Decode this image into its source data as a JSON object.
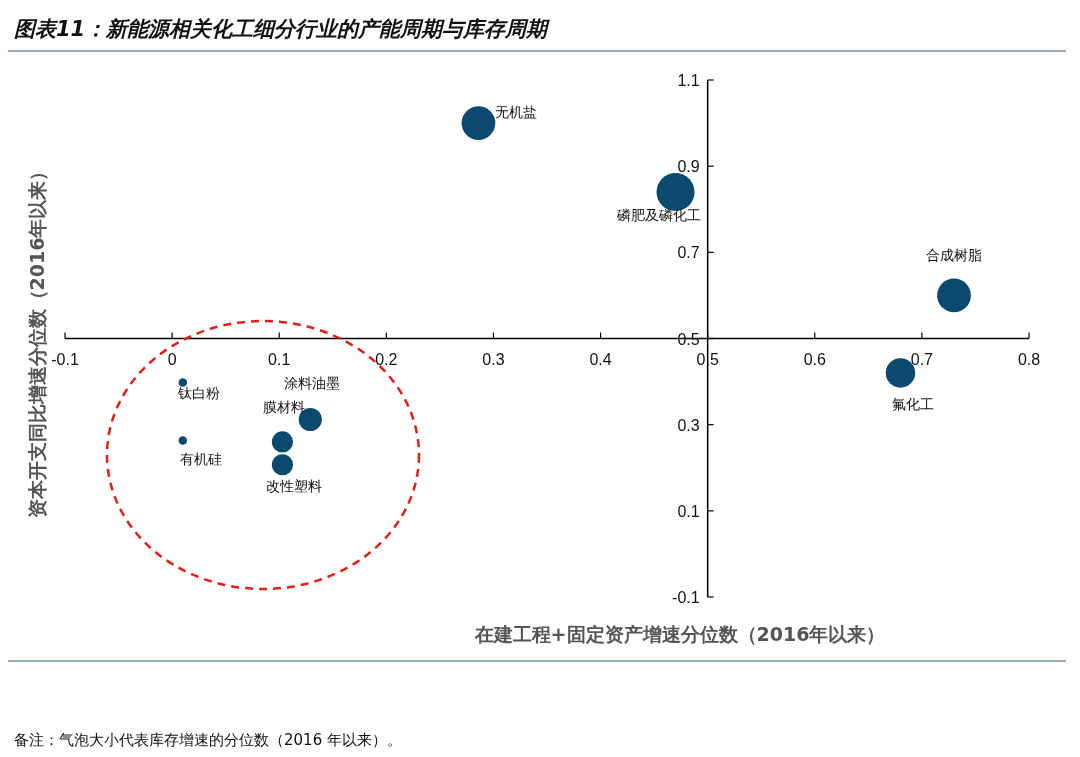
{
  "chart_data": {
    "type": "bubble",
    "title": "图表11：新能源相关化工细分行业的产能周期与库存周期",
    "xlabel": "在建工程+固定资产增速分位数（2016年以来）",
    "ylabel": "资本开支同比增速分位数（2016年以来）",
    "series": [
      {
        "color": "#0b4a6f",
        "x": [
          0.286,
          0.47,
          0.73,
          0.68,
          0.129,
          0.103,
          0.103,
          0.01,
          0.01
        ],
        "values": [
          1.0,
          0.84,
          0.6,
          0.42,
          0.312,
          0.26,
          0.207,
          0.398,
          0.263
        ],
        "sizes": [
          0.79,
          1,
          0.79,
          0.6,
          0.37,
          0.31,
          0.31,
          0.05,
          0.05
        ]
      }
    ],
    "xlim": [
      -0.1,
      0.8
    ],
    "ylim": [
      -0.1,
      1.1
    ],
    "xticks": [
      -0.1,
      0,
      0.1,
      0.2,
      0.3,
      0.4,
      0.5,
      0.6,
      0.7,
      0.8
    ],
    "yticks": [
      -0.1,
      0.1,
      0.3,
      0.5,
      0.7,
      0.9,
      1.1
    ],
    "annotations": [
      {
        "text": "无机盐",
        "x": 0.286,
        "y": 1.0
      },
      {
        "text": "磷肥及磷化工",
        "x": 0.47,
        "y": 0.84
      },
      {
        "text": "合成树脂",
        "x": 0.73,
        "y": 0.6
      },
      {
        "text": "氟化工",
        "x": 0.68,
        "y": 0.42
      },
      {
        "text": "涂料油墨",
        "x": 0.129,
        "y": 0.312
      },
      {
        "text": "膜材料",
        "x": 0.103,
        "y": 0.26
      },
      {
        "text": "改性塑料",
        "x": 0.103,
        "y": 0.207
      },
      {
        "text": "钛白粉",
        "x": 0.01,
        "y": 0.398
      },
      {
        "text": "有机硅",
        "x": 0.01,
        "y": 0.263
      },
      "备注：气泡大小代表库存增速的分位数（2016 年以来）。"
    ]
  }
}
